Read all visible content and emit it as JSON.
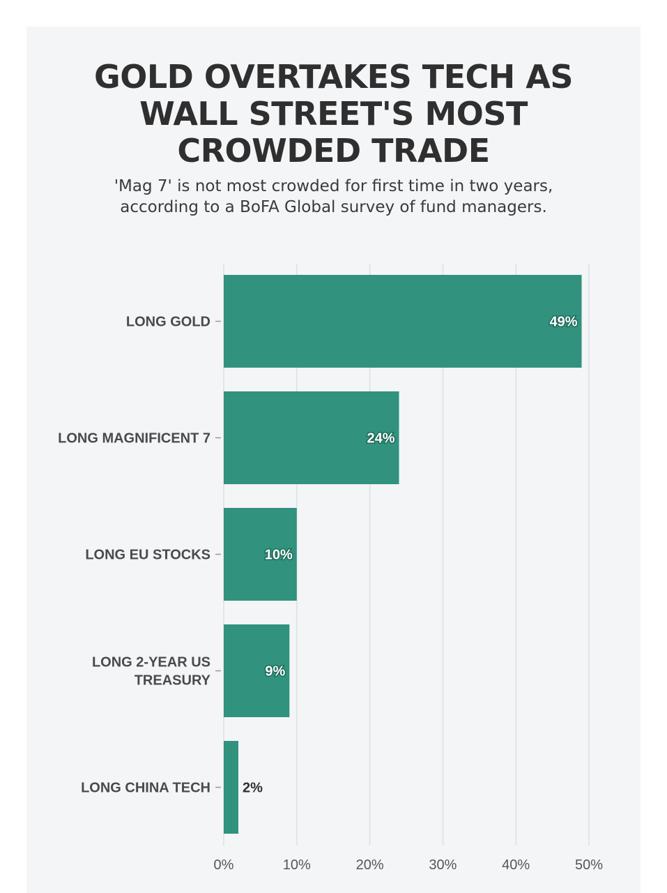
{
  "chart_data": {
    "type": "bar",
    "orientation": "horizontal",
    "title": "GOLD OVERTAKES TECH AS\nWALL STREET'S MOST\nCROWDED TRADE",
    "subtitle": "'Mag 7' is not most crowded for first time in two years,\naccording to a BoFA Global survey of fund managers.",
    "categories": [
      [
        "LONG GOLD"
      ],
      [
        "LONG MAGNIFICENT 7"
      ],
      [
        "LONG EU STOCKS"
      ],
      [
        "LONG 2-YEAR US",
        "TREASURY"
      ],
      [
        "LONG CHINA TECH"
      ]
    ],
    "values": [
      49,
      24,
      10,
      9,
      2
    ],
    "value_labels": [
      "49%",
      "24%",
      "10%",
      "9%",
      "2%"
    ],
    "xlim": [
      0,
      50
    ],
    "ticks": [
      0,
      10,
      20,
      30,
      40,
      50
    ],
    "tick_labels": [
      "0%",
      "10%",
      "20%",
      "30%",
      "40%",
      "50%"
    ],
    "grid": true,
    "legend": "none",
    "bar_color": "#31927e",
    "grid_color": "#e2e4e8"
  }
}
